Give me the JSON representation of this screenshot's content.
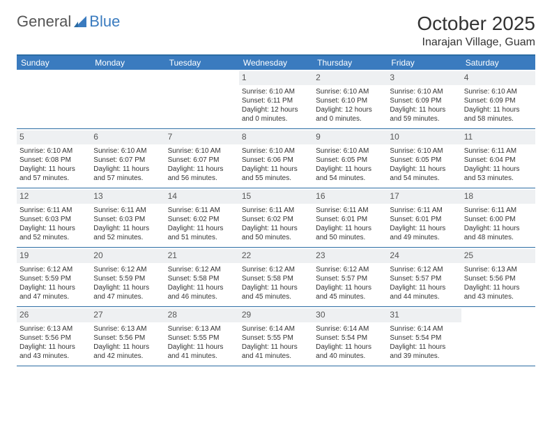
{
  "logo": {
    "word1": "General",
    "word2": "Blue"
  },
  "title": "October 2025",
  "location": "Inarajan Village, Guam",
  "colors": {
    "header_bar": "#3a7bbf",
    "border": "#2b6ca3",
    "daynum_bg": "#eef0f2",
    "text": "#333333",
    "logo_gray": "#555555",
    "logo_blue": "#3a7bbf"
  },
  "days_of_week": [
    "Sunday",
    "Monday",
    "Tuesday",
    "Wednesday",
    "Thursday",
    "Friday",
    "Saturday"
  ],
  "weeks": [
    [
      {
        "blank": true
      },
      {
        "blank": true
      },
      {
        "blank": true
      },
      {
        "num": "1",
        "sunrise": "Sunrise: 6:10 AM",
        "sunset": "Sunset: 6:11 PM",
        "dl1": "Daylight: 12 hours",
        "dl2": "and 0 minutes."
      },
      {
        "num": "2",
        "sunrise": "Sunrise: 6:10 AM",
        "sunset": "Sunset: 6:10 PM",
        "dl1": "Daylight: 12 hours",
        "dl2": "and 0 minutes."
      },
      {
        "num": "3",
        "sunrise": "Sunrise: 6:10 AM",
        "sunset": "Sunset: 6:09 PM",
        "dl1": "Daylight: 11 hours",
        "dl2": "and 59 minutes."
      },
      {
        "num": "4",
        "sunrise": "Sunrise: 6:10 AM",
        "sunset": "Sunset: 6:09 PM",
        "dl1": "Daylight: 11 hours",
        "dl2": "and 58 minutes."
      }
    ],
    [
      {
        "num": "5",
        "sunrise": "Sunrise: 6:10 AM",
        "sunset": "Sunset: 6:08 PM",
        "dl1": "Daylight: 11 hours",
        "dl2": "and 57 minutes."
      },
      {
        "num": "6",
        "sunrise": "Sunrise: 6:10 AM",
        "sunset": "Sunset: 6:07 PM",
        "dl1": "Daylight: 11 hours",
        "dl2": "and 57 minutes."
      },
      {
        "num": "7",
        "sunrise": "Sunrise: 6:10 AM",
        "sunset": "Sunset: 6:07 PM",
        "dl1": "Daylight: 11 hours",
        "dl2": "and 56 minutes."
      },
      {
        "num": "8",
        "sunrise": "Sunrise: 6:10 AM",
        "sunset": "Sunset: 6:06 PM",
        "dl1": "Daylight: 11 hours",
        "dl2": "and 55 minutes."
      },
      {
        "num": "9",
        "sunrise": "Sunrise: 6:10 AM",
        "sunset": "Sunset: 6:05 PM",
        "dl1": "Daylight: 11 hours",
        "dl2": "and 54 minutes."
      },
      {
        "num": "10",
        "sunrise": "Sunrise: 6:10 AM",
        "sunset": "Sunset: 6:05 PM",
        "dl1": "Daylight: 11 hours",
        "dl2": "and 54 minutes."
      },
      {
        "num": "11",
        "sunrise": "Sunrise: 6:11 AM",
        "sunset": "Sunset: 6:04 PM",
        "dl1": "Daylight: 11 hours",
        "dl2": "and 53 minutes."
      }
    ],
    [
      {
        "num": "12",
        "sunrise": "Sunrise: 6:11 AM",
        "sunset": "Sunset: 6:03 PM",
        "dl1": "Daylight: 11 hours",
        "dl2": "and 52 minutes."
      },
      {
        "num": "13",
        "sunrise": "Sunrise: 6:11 AM",
        "sunset": "Sunset: 6:03 PM",
        "dl1": "Daylight: 11 hours",
        "dl2": "and 52 minutes."
      },
      {
        "num": "14",
        "sunrise": "Sunrise: 6:11 AM",
        "sunset": "Sunset: 6:02 PM",
        "dl1": "Daylight: 11 hours",
        "dl2": "and 51 minutes."
      },
      {
        "num": "15",
        "sunrise": "Sunrise: 6:11 AM",
        "sunset": "Sunset: 6:02 PM",
        "dl1": "Daylight: 11 hours",
        "dl2": "and 50 minutes."
      },
      {
        "num": "16",
        "sunrise": "Sunrise: 6:11 AM",
        "sunset": "Sunset: 6:01 PM",
        "dl1": "Daylight: 11 hours",
        "dl2": "and 50 minutes."
      },
      {
        "num": "17",
        "sunrise": "Sunrise: 6:11 AM",
        "sunset": "Sunset: 6:01 PM",
        "dl1": "Daylight: 11 hours",
        "dl2": "and 49 minutes."
      },
      {
        "num": "18",
        "sunrise": "Sunrise: 6:11 AM",
        "sunset": "Sunset: 6:00 PM",
        "dl1": "Daylight: 11 hours",
        "dl2": "and 48 minutes."
      }
    ],
    [
      {
        "num": "19",
        "sunrise": "Sunrise: 6:12 AM",
        "sunset": "Sunset: 5:59 PM",
        "dl1": "Daylight: 11 hours",
        "dl2": "and 47 minutes."
      },
      {
        "num": "20",
        "sunrise": "Sunrise: 6:12 AM",
        "sunset": "Sunset: 5:59 PM",
        "dl1": "Daylight: 11 hours",
        "dl2": "and 47 minutes."
      },
      {
        "num": "21",
        "sunrise": "Sunrise: 6:12 AM",
        "sunset": "Sunset: 5:58 PM",
        "dl1": "Daylight: 11 hours",
        "dl2": "and 46 minutes."
      },
      {
        "num": "22",
        "sunrise": "Sunrise: 6:12 AM",
        "sunset": "Sunset: 5:58 PM",
        "dl1": "Daylight: 11 hours",
        "dl2": "and 45 minutes."
      },
      {
        "num": "23",
        "sunrise": "Sunrise: 6:12 AM",
        "sunset": "Sunset: 5:57 PM",
        "dl1": "Daylight: 11 hours",
        "dl2": "and 45 minutes."
      },
      {
        "num": "24",
        "sunrise": "Sunrise: 6:12 AM",
        "sunset": "Sunset: 5:57 PM",
        "dl1": "Daylight: 11 hours",
        "dl2": "and 44 minutes."
      },
      {
        "num": "25",
        "sunrise": "Sunrise: 6:13 AM",
        "sunset": "Sunset: 5:56 PM",
        "dl1": "Daylight: 11 hours",
        "dl2": "and 43 minutes."
      }
    ],
    [
      {
        "num": "26",
        "sunrise": "Sunrise: 6:13 AM",
        "sunset": "Sunset: 5:56 PM",
        "dl1": "Daylight: 11 hours",
        "dl2": "and 43 minutes."
      },
      {
        "num": "27",
        "sunrise": "Sunrise: 6:13 AM",
        "sunset": "Sunset: 5:56 PM",
        "dl1": "Daylight: 11 hours",
        "dl2": "and 42 minutes."
      },
      {
        "num": "28",
        "sunrise": "Sunrise: 6:13 AM",
        "sunset": "Sunset: 5:55 PM",
        "dl1": "Daylight: 11 hours",
        "dl2": "and 41 minutes."
      },
      {
        "num": "29",
        "sunrise": "Sunrise: 6:14 AM",
        "sunset": "Sunset: 5:55 PM",
        "dl1": "Daylight: 11 hours",
        "dl2": "and 41 minutes."
      },
      {
        "num": "30",
        "sunrise": "Sunrise: 6:14 AM",
        "sunset": "Sunset: 5:54 PM",
        "dl1": "Daylight: 11 hours",
        "dl2": "and 40 minutes."
      },
      {
        "num": "31",
        "sunrise": "Sunrise: 6:14 AM",
        "sunset": "Sunset: 5:54 PM",
        "dl1": "Daylight: 11 hours",
        "dl2": "and 39 minutes."
      },
      {
        "blank": true
      }
    ]
  ]
}
